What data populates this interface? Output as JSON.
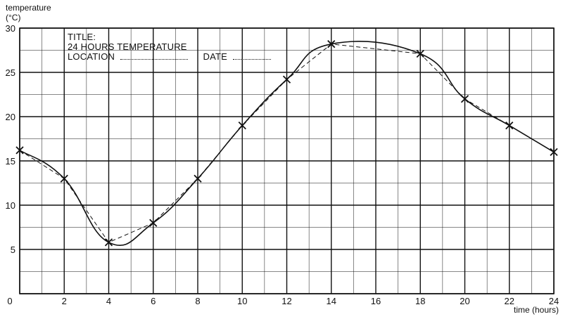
{
  "chart_data": {
    "type": "line",
    "ylabel_line1": "temperature",
    "ylabel_line2": "(°C)",
    "xlabel": "time (hours)",
    "xlim": [
      0,
      24
    ],
    "ylim": [
      0,
      30
    ],
    "x_ticks": [
      0,
      2,
      4,
      6,
      8,
      10,
      12,
      14,
      16,
      18,
      20,
      22,
      24
    ],
    "y_ticks": [
      0,
      5,
      10,
      15,
      20,
      25,
      30
    ],
    "grid": true,
    "panel": {
      "title_label": "TITLE:",
      "title_value": "24 HOURS TEMPERATURE",
      "location_label": "LOCATION",
      "date_label": "DATE"
    },
    "series": [
      {
        "points": [
          {
            "x": 0,
            "y": 16.2
          },
          {
            "x": 2,
            "y": 13
          },
          {
            "x": 4,
            "y": 5.8
          },
          {
            "x": 6,
            "y": 8
          },
          {
            "x": 8,
            "y": 13
          },
          {
            "x": 10,
            "y": 19
          },
          {
            "x": 12,
            "y": 24.2
          },
          {
            "x": 14,
            "y": 28.2
          },
          {
            "x": 18,
            "y": 27.1
          },
          {
            "x": 20,
            "y": 22
          },
          {
            "x": 22,
            "y": 19
          },
          {
            "x": 24,
            "y": 16
          }
        ]
      }
    ]
  }
}
